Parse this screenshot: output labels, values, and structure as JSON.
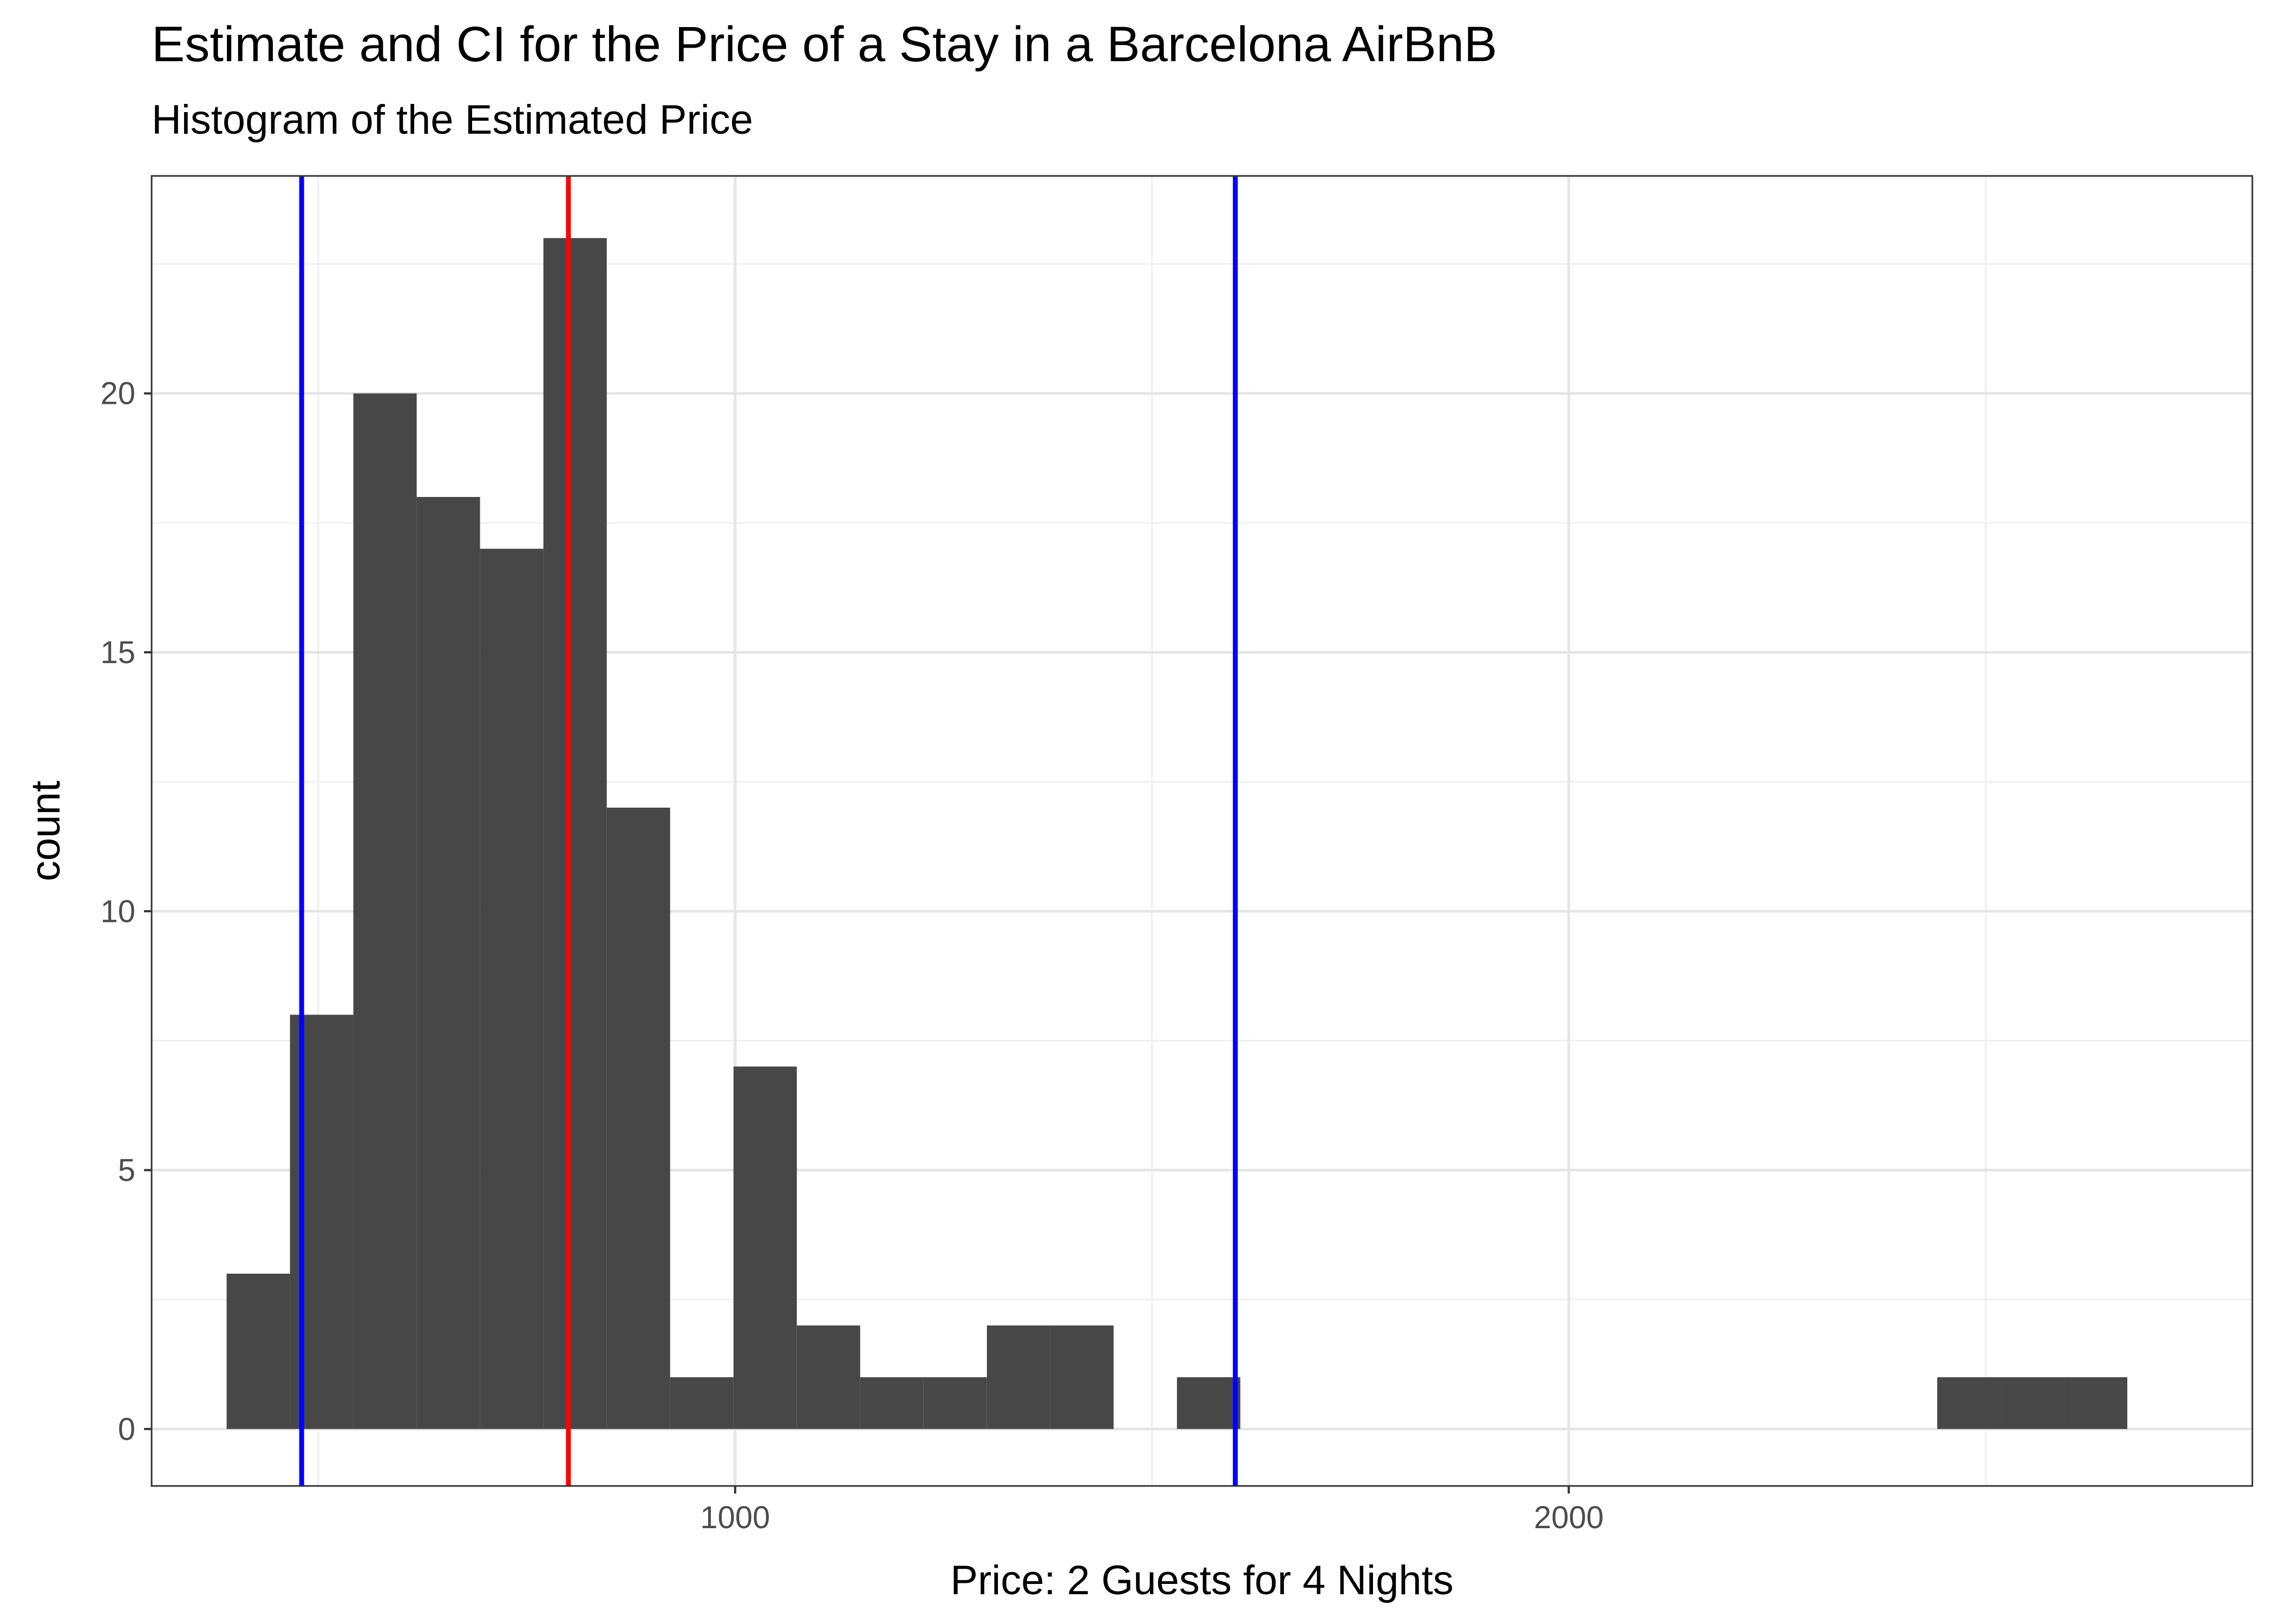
{
  "chart_data": {
    "type": "bar",
    "title": "Estimate and CI for the Price of a Stay in a Barcelona AirBnB",
    "subtitle": "Histogram of the Estimated Price",
    "xlabel": "Price: 2 Guests for 4 Nights",
    "ylabel": "count",
    "xlim": [
      300,
      2820
    ],
    "ylim": [
      -1.1,
      24.2
    ],
    "x_ticks": [
      1000,
      2000
    ],
    "y_ticks": [
      0,
      5,
      10,
      15,
      20
    ],
    "grid": true,
    "bin_width": 76,
    "bins": [
      {
        "x0": 390,
        "x1": 466,
        "count": 3
      },
      {
        "x0": 466,
        "x1": 542,
        "count": 8
      },
      {
        "x0": 542,
        "x1": 618,
        "count": 20
      },
      {
        "x0": 618,
        "x1": 694,
        "count": 18
      },
      {
        "x0": 694,
        "x1": 770,
        "count": 17
      },
      {
        "x0": 770,
        "x1": 846,
        "count": 23
      },
      {
        "x0": 846,
        "x1": 922,
        "count": 12
      },
      {
        "x0": 922,
        "x1": 998,
        "count": 1
      },
      {
        "x0": 998,
        "x1": 1074,
        "count": 7
      },
      {
        "x0": 1074,
        "x1": 1150,
        "count": 2
      },
      {
        "x0": 1150,
        "x1": 1226,
        "count": 1
      },
      {
        "x0": 1226,
        "x1": 1302,
        "count": 1
      },
      {
        "x0": 1302,
        "x1": 1378,
        "count": 2
      },
      {
        "x0": 1378,
        "x1": 1454,
        "count": 2
      },
      {
        "x0": 1530,
        "x1": 1606,
        "count": 1
      },
      {
        "x0": 2442,
        "x1": 2518,
        "count": 1
      },
      {
        "x0": 2518,
        "x1": 2594,
        "count": 1
      },
      {
        "x0": 2594,
        "x1": 2670,
        "count": 1
      }
    ],
    "vlines": [
      {
        "x": 800,
        "color": "#ff0000",
        "role": "estimate"
      },
      {
        "x": 480,
        "color": "#0000ff",
        "role": "ci-lower"
      },
      {
        "x": 1600,
        "color": "#0000ff",
        "role": "ci-upper"
      }
    ],
    "colors": {
      "bars": "#474747",
      "panel_border": "#333333",
      "grid_major": "#e5e5e5",
      "grid_minor": "#f0f0f0"
    }
  }
}
